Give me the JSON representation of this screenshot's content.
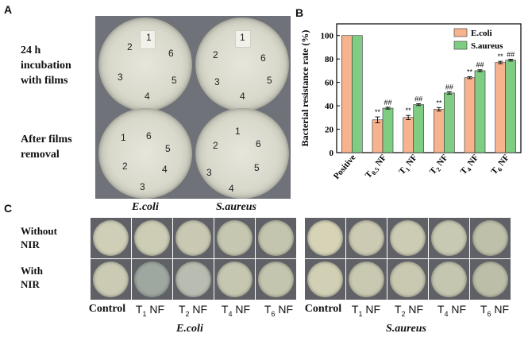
{
  "panel_a": {
    "letter": "A",
    "row1_label": [
      "24 h",
      "incubation",
      "with films"
    ],
    "row2_label": [
      "After films",
      "removal"
    ],
    "plate_top_left_numbers": [
      "1",
      "2",
      "3",
      "4",
      "5",
      "6"
    ],
    "plate_top_right_numbers": [
      "1",
      "2",
      "3",
      "4",
      "5",
      "6"
    ],
    "plate_bottom_left_numbers": [
      "1",
      "6",
      "2",
      "3",
      "4",
      "5"
    ],
    "plate_bottom_right_numbers": [
      "1",
      "2",
      "3",
      "4",
      "5",
      "6"
    ]
  },
  "panel_b": {
    "letter": "B",
    "colors": {
      "ecoli": "#f6b38d",
      "saureus": "#7fcd82"
    }
  },
  "chart_data": {
    "type": "bar",
    "categories": [
      "Positive",
      "T0.5 NF",
      "T1 NF",
      "T2 NF",
      "T4 NF",
      "T6 NF"
    ],
    "category_labels": [
      {
        "main": "Positive",
        "sub": ""
      },
      {
        "main": "T",
        "sub": "0.5",
        "tail": " NF"
      },
      {
        "main": "T",
        "sub": "1",
        "tail": " NF"
      },
      {
        "main": "T",
        "sub": "2",
        "tail": " NF"
      },
      {
        "main": "T",
        "sub": "4",
        "tail": " NF"
      },
      {
        "main": "T",
        "sub": "6",
        "tail": " NF"
      }
    ],
    "series": [
      {
        "name": "E.coli",
        "values": [
          100,
          28,
          30,
          37,
          64,
          77
        ],
        "errors": [
          0,
          2.5,
          1.8,
          1.5,
          0.8,
          1.0
        ],
        "annotations": [
          "",
          "**",
          "**",
          "**",
          "**",
          "**"
        ]
      },
      {
        "name": "S.aureus",
        "values": [
          100,
          38,
          41,
          51,
          70,
          79
        ],
        "errors": [
          0,
          0.8,
          0.8,
          1.0,
          0.8,
          0.8
        ],
        "annotations": [
          "",
          "##",
          "##",
          "##",
          "##",
          "##"
        ]
      }
    ],
    "ylabel": "Bacterial resistance  rate (%)",
    "ylim": [
      0,
      110
    ],
    "yticks": [
      0,
      20,
      40,
      60,
      80,
      100
    ],
    "legend": "top-right"
  },
  "panel_c": {
    "letter": "C",
    "header_left": "E.coli",
    "header_right": "S.aureus",
    "row1_label": [
      "Without",
      "NIR"
    ],
    "row2_label": [
      "With",
      "NIR"
    ],
    "columns": [
      {
        "main": "Control",
        "sub": "",
        "tail": ""
      },
      {
        "main": "T",
        "sub": "1",
        "tail": " NF"
      },
      {
        "main": "T",
        "sub": "2",
        "tail": " NF"
      },
      {
        "main": "T",
        "sub": "4",
        "tail": " NF"
      },
      {
        "main": "T",
        "sub": "6",
        "tail": " NF"
      }
    ],
    "footer_left": "E.coli",
    "footer_right": "S.aureus"
  }
}
